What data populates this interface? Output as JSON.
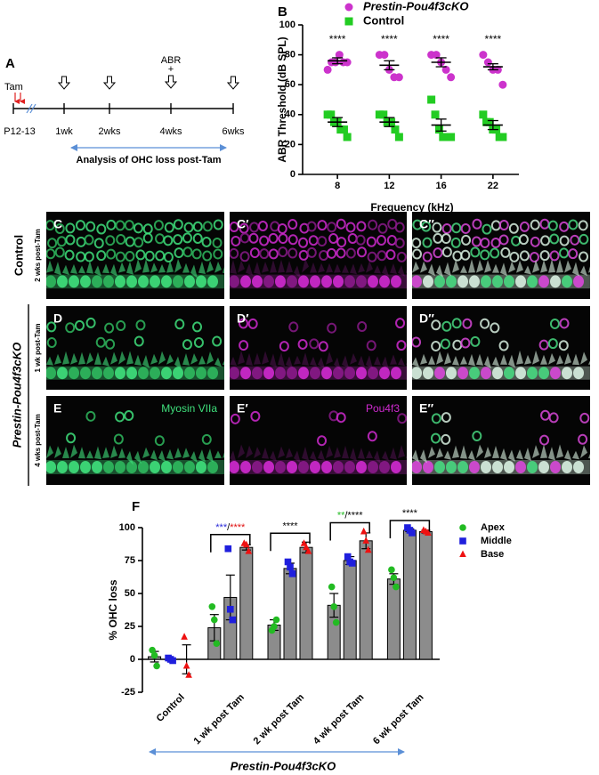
{
  "panel_a": {
    "label": "A",
    "tam": "Tam",
    "abr": "ABR",
    "plus": "+",
    "timepoints": [
      "P12-13",
      "1wk",
      "2wks",
      "4wks",
      "6wks"
    ],
    "analysis": "Analysis of OHC loss post-Tam"
  },
  "chart_data": [
    {
      "type": "dotplot",
      "panel": "B",
      "xlabel": "Frequency (kHz)",
      "ylabel": "ABR Threshold (dB SPL)",
      "categories": [
        "8",
        "12",
        "16",
        "22"
      ],
      "ylim": [
        0,
        100
      ],
      "yticks": [
        0,
        20,
        40,
        60,
        80,
        100
      ],
      "grid": false,
      "legend": "top",
      "annotations": [
        "****",
        "****",
        "****",
        "****"
      ],
      "series": [
        {
          "name": "Prestin-Pou4f3cKO",
          "color": "#cc33cc",
          "marker": "circle",
          "values": [
            76,
            73,
            75,
            72
          ],
          "errors": [
            2,
            3,
            3,
            2
          ],
          "points": [
            [
              70,
              75,
              75,
              80,
              75,
              75
            ],
            [
              80,
              80,
              70,
              65,
              65
            ],
            [
              80,
              80,
              75,
              70,
              65
            ],
            [
              80,
              75,
              70,
              70,
              60
            ]
          ]
        },
        {
          "name": "Control",
          "color": "#22cc22",
          "marker": "square",
          "values": [
            35,
            35,
            33,
            33
          ],
          "errors": [
            3,
            3,
            4,
            3
          ],
          "points": [
            [
              40,
              40,
              35,
              35,
              30,
              30,
              25
            ],
            [
              40,
              40,
              35,
              35,
              30,
              25
            ],
            [
              50,
              40,
              30,
              25,
              25,
              25
            ],
            [
              40,
              35,
              35,
              30,
              30,
              25,
              25
            ]
          ]
        }
      ]
    },
    {
      "type": "bar",
      "panel": "F",
      "ylabel": "% OHC loss",
      "group_label": "Prestin-Pou4f3cKO",
      "categories": [
        "Control",
        "1 wk post Tam",
        "2 wk post Tam",
        "4 wk post Tam",
        "6 wk post Tam"
      ],
      "ylim": [
        -25,
        100
      ],
      "yticks": [
        -25,
        0,
        25,
        50,
        75,
        100
      ],
      "grid": false,
      "legend": "right",
      "bar_color": "#8c8c8c",
      "annotations": [
        null,
        [
          {
            "text": "***",
            "color": "#2a2ad8"
          },
          {
            "text": "/",
            "color": "#000000"
          },
          {
            "text": "****",
            "color": "#e01010"
          }
        ],
        [
          {
            "text": "****",
            "color": "#000000"
          }
        ],
        [
          {
            "text": "**",
            "color": "#22bb22"
          },
          {
            "text": "/****",
            "color": "#000000"
          }
        ],
        [
          {
            "text": "****",
            "color": "#000000"
          }
        ]
      ],
      "series": [
        {
          "name": "Apex",
          "color": "#22bb22",
          "marker": "circle",
          "values": [
            2,
            24,
            26,
            41,
            61
          ],
          "errors": [
            4,
            10,
            4,
            9,
            4
          ],
          "points": [
            [
              7,
              3,
              -5
            ],
            [
              40,
              30,
              12
            ],
            [
              22,
              25,
              30
            ],
            [
              55,
              40,
              28
            ],
            [
              68,
              62,
              55
            ]
          ]
        },
        {
          "name": "Middle",
          "color": "#1f1fdd",
          "marker": "square",
          "values": [
            0,
            47,
            69,
            75,
            98
          ],
          "errors": [
            1,
            17,
            4,
            3,
            1
          ],
          "points": [
            [
              1,
              0,
              -1
            ],
            [
              84,
              38,
              30
            ],
            [
              74,
              70,
              65
            ],
            [
              78,
              74,
              73
            ],
            [
              100,
              98,
              96
            ]
          ]
        },
        {
          "name": "Base",
          "color": "#ee1111",
          "marker": "triangle",
          "values": [
            0,
            85,
            85,
            90,
            97
          ],
          "errors": [
            11,
            2,
            4,
            6,
            1
          ],
          "points": [
            [
              17,
              -5,
              -12
            ],
            [
              88,
              87,
              82
            ],
            [
              88,
              85,
              82
            ],
            [
              97,
              90,
              83
            ],
            [
              98,
              97,
              96
            ]
          ]
        }
      ]
    }
  ],
  "images": {
    "group_control": "Control",
    "group_cko": "Prestin-Pou4f3cKO",
    "rows": [
      {
        "time": "2 wks post-Tam",
        "panels": [
          "C",
          "C′",
          "C′′"
        ]
      },
      {
        "time": "1 wk post-Tam",
        "panels": [
          "D",
          "D′",
          "D′′"
        ]
      },
      {
        "time": "4 wks post-Tam",
        "panels": [
          "E",
          "E′",
          "E′′"
        ],
        "stains": [
          "Myosin VIIa",
          "Pou4f3"
        ]
      }
    ]
  }
}
